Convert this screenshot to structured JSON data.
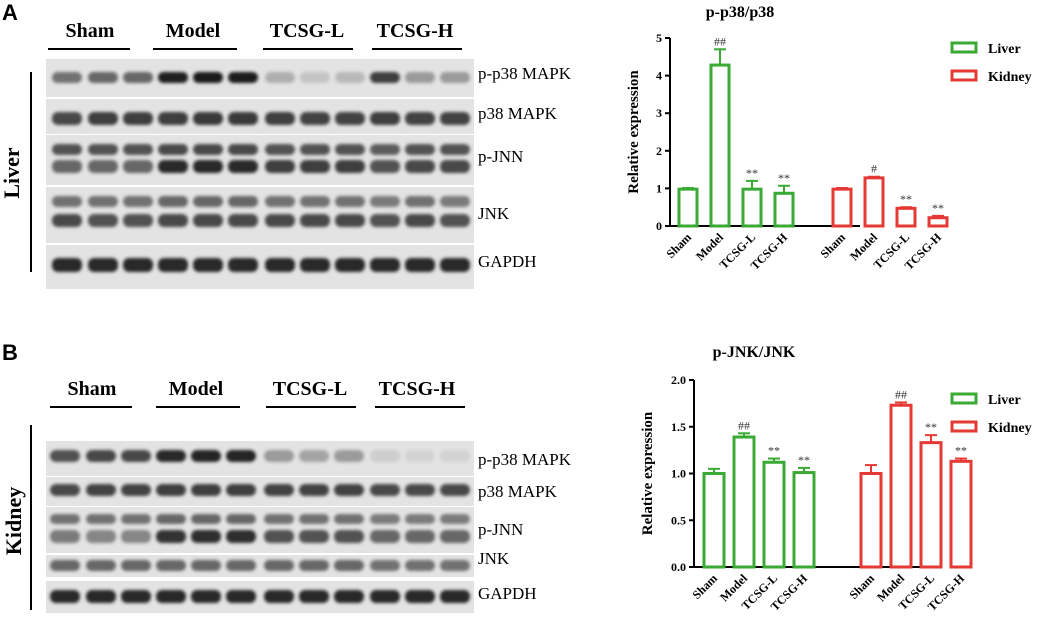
{
  "panels": [
    {
      "letter": "A",
      "tissue": "Liver",
      "groups": [
        "Sham",
        "Model",
        "TCSG-L",
        "TCSG-H"
      ],
      "proteins": [
        "p-p38 MAPK",
        "p38 MAPK",
        "p-JNN",
        "JNK",
        "GAPDH"
      ]
    },
    {
      "letter": "B",
      "tissue": "Kidney",
      "groups": [
        "Sham",
        "Model",
        "TCSG-L",
        "TCSG-H"
      ],
      "proteins": [
        "p-p38 MAPK",
        "p38 MAPK",
        "p-JNN",
        "JNK",
        "GAPDH"
      ]
    }
  ],
  "colors": {
    "liver": "#3aaa35",
    "kidney": "#e53935"
  },
  "chart_data": [
    {
      "type": "bar",
      "title": "p-p38/p38",
      "ylabel": "Relative expression",
      "ylim": [
        0,
        5
      ],
      "yticks": [
        "0",
        "1",
        "2",
        "3",
        "4",
        "5"
      ],
      "categories": [
        "Sham",
        "Model",
        "TCSG-L",
        "TCSG-H"
      ],
      "series": [
        {
          "name": "Liver",
          "values": [
            0.98,
            4.28,
            0.98,
            0.87
          ],
          "errors": [
            0.03,
            0.42,
            0.22,
            0.2
          ],
          "marks": [
            "",
            "##",
            "**",
            "**"
          ]
        },
        {
          "name": "Kidney",
          "values": [
            0.98,
            1.28,
            0.47,
            0.22
          ],
          "errors": [
            0.03,
            0.03,
            0.03,
            0.05
          ],
          "marks": [
            "",
            "#",
            "**",
            "**"
          ]
        }
      ],
      "legend": "top-right"
    },
    {
      "type": "bar",
      "title": "p-JNK/JNK",
      "ylabel": "Relative expression",
      "ylim": [
        0,
        2
      ],
      "yticks": [
        "0.0",
        "0.5",
        "1.0",
        "1.5",
        "2.0"
      ],
      "categories": [
        "Sham",
        "Model",
        "TCSG-L",
        "TCSG-H"
      ],
      "series": [
        {
          "name": "Liver",
          "values": [
            1.0,
            1.39,
            1.12,
            1.01
          ],
          "errors": [
            0.05,
            0.04,
            0.04,
            0.05
          ],
          "marks": [
            "",
            "##",
            "**",
            "**"
          ]
        },
        {
          "name": "Kidney",
          "values": [
            1.0,
            1.73,
            1.33,
            1.13
          ],
          "errors": [
            0.09,
            0.03,
            0.08,
            0.03
          ],
          "marks": [
            "",
            "##",
            "**",
            "**"
          ]
        }
      ],
      "legend": "top-right"
    }
  ]
}
